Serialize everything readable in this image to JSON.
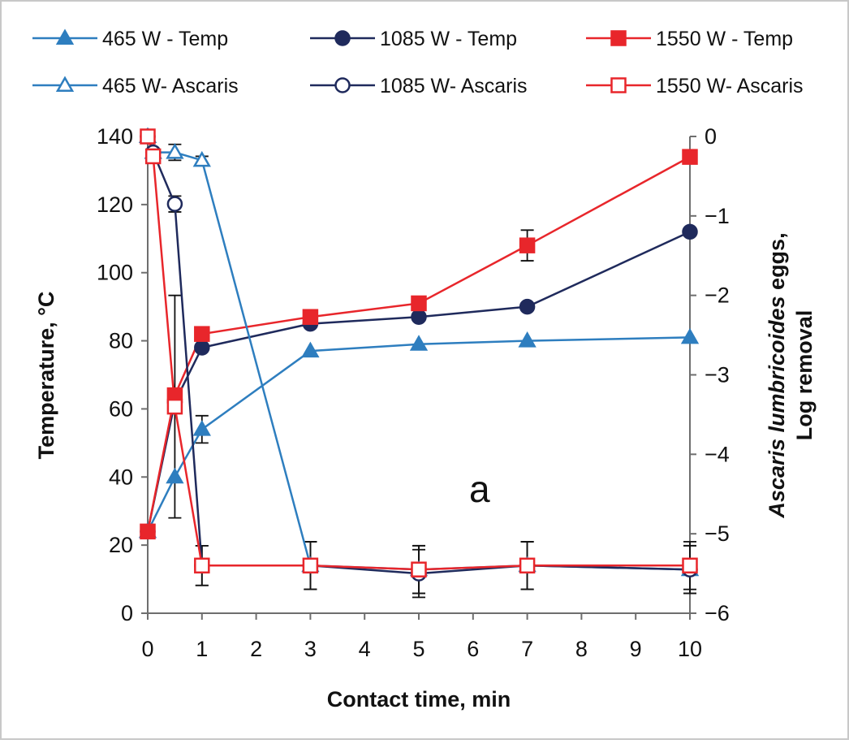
{
  "chart_data": {
    "type": "line",
    "xlabel": "Contact time, min",
    "ylabel": "Temperature, °C",
    "y2label_line1_italic": "Ascaris lumbricoides",
    "y2label_line1_rest": " eggs,",
    "y2label_line2": "Log removal",
    "panel_label": "a",
    "xlim": [
      0,
      10
    ],
    "ylim": [
      0,
      140
    ],
    "y2lim": [
      -6,
      0
    ],
    "x_ticks": [
      0,
      1,
      2,
      3,
      4,
      5,
      6,
      7,
      8,
      9,
      10
    ],
    "y_ticks": [
      0,
      20,
      40,
      60,
      80,
      100,
      120,
      140
    ],
    "y2_ticks": [
      -6,
      -5,
      -4,
      -3,
      -2,
      -1,
      0
    ],
    "grid": false,
    "legend_position": "top",
    "series": [
      {
        "name": "465 W - Temp",
        "axis": "left",
        "color": "#2e7ebf",
        "marker": "triangle-filled",
        "x": [
          0,
          0.5,
          1,
          3,
          5,
          7,
          10
        ],
        "y": [
          24,
          40,
          54,
          77,
          79,
          80,
          81
        ],
        "err": [
          0,
          0,
          4,
          0,
          0,
          0,
          0
        ]
      },
      {
        "name": "1085 W - Temp",
        "axis": "left",
        "color": "#1f2a5c",
        "marker": "circle-filled",
        "x": [
          0,
          0.5,
          1,
          3,
          5,
          7,
          10
        ],
        "y": [
          24,
          62,
          78,
          85,
          87,
          90,
          112
        ],
        "err": [
          0,
          0,
          0,
          0,
          0,
          0,
          0
        ]
      },
      {
        "name": "1550 W - Temp",
        "axis": "left",
        "color": "#e8262b",
        "marker": "square-filled",
        "x": [
          0,
          0.5,
          1,
          3,
          5,
          7,
          10
        ],
        "y": [
          24,
          64,
          82,
          87,
          91,
          108,
          134
        ],
        "err": [
          0,
          0,
          0,
          0,
          0,
          4.5,
          0
        ]
      },
      {
        "name": "465 W- Ascaris",
        "axis": "right",
        "color": "#2e7ebf",
        "marker": "triangle-open",
        "x": [
          0,
          0.1,
          0.5,
          1,
          3,
          5,
          7,
          10
        ],
        "y": [
          0,
          -0.2,
          -0.2,
          -0.3,
          -5.4,
          -5.45,
          -5.4,
          -5.45
        ],
        "err": [
          0,
          0,
          0.1,
          0.05,
          0.3,
          0.3,
          0.3,
          0.3
        ]
      },
      {
        "name": "1085 W- Ascaris",
        "axis": "right",
        "color": "#1f2a5c",
        "marker": "circle-open",
        "x": [
          0,
          0.1,
          0.5,
          1,
          3,
          5,
          7,
          10
        ],
        "y": [
          0,
          -0.2,
          -0.85,
          -5.4,
          -5.4,
          -5.5,
          -5.4,
          -5.45
        ],
        "err": [
          0,
          0,
          0.1,
          0.25,
          0.3,
          0.3,
          0.3,
          0.3
        ]
      },
      {
        "name": "1550 W- Ascaris",
        "axis": "right",
        "color": "#e8262b",
        "marker": "square-open",
        "x": [
          0,
          0.1,
          0.5,
          1,
          3,
          5,
          7,
          10
        ],
        "y": [
          0,
          -0.25,
          -3.4,
          -5.4,
          -5.4,
          -5.45,
          -5.4,
          -5.4
        ],
        "err": [
          0,
          0,
          1.4,
          0.25,
          0.3,
          0.3,
          0.3,
          0.3
        ]
      }
    ]
  }
}
